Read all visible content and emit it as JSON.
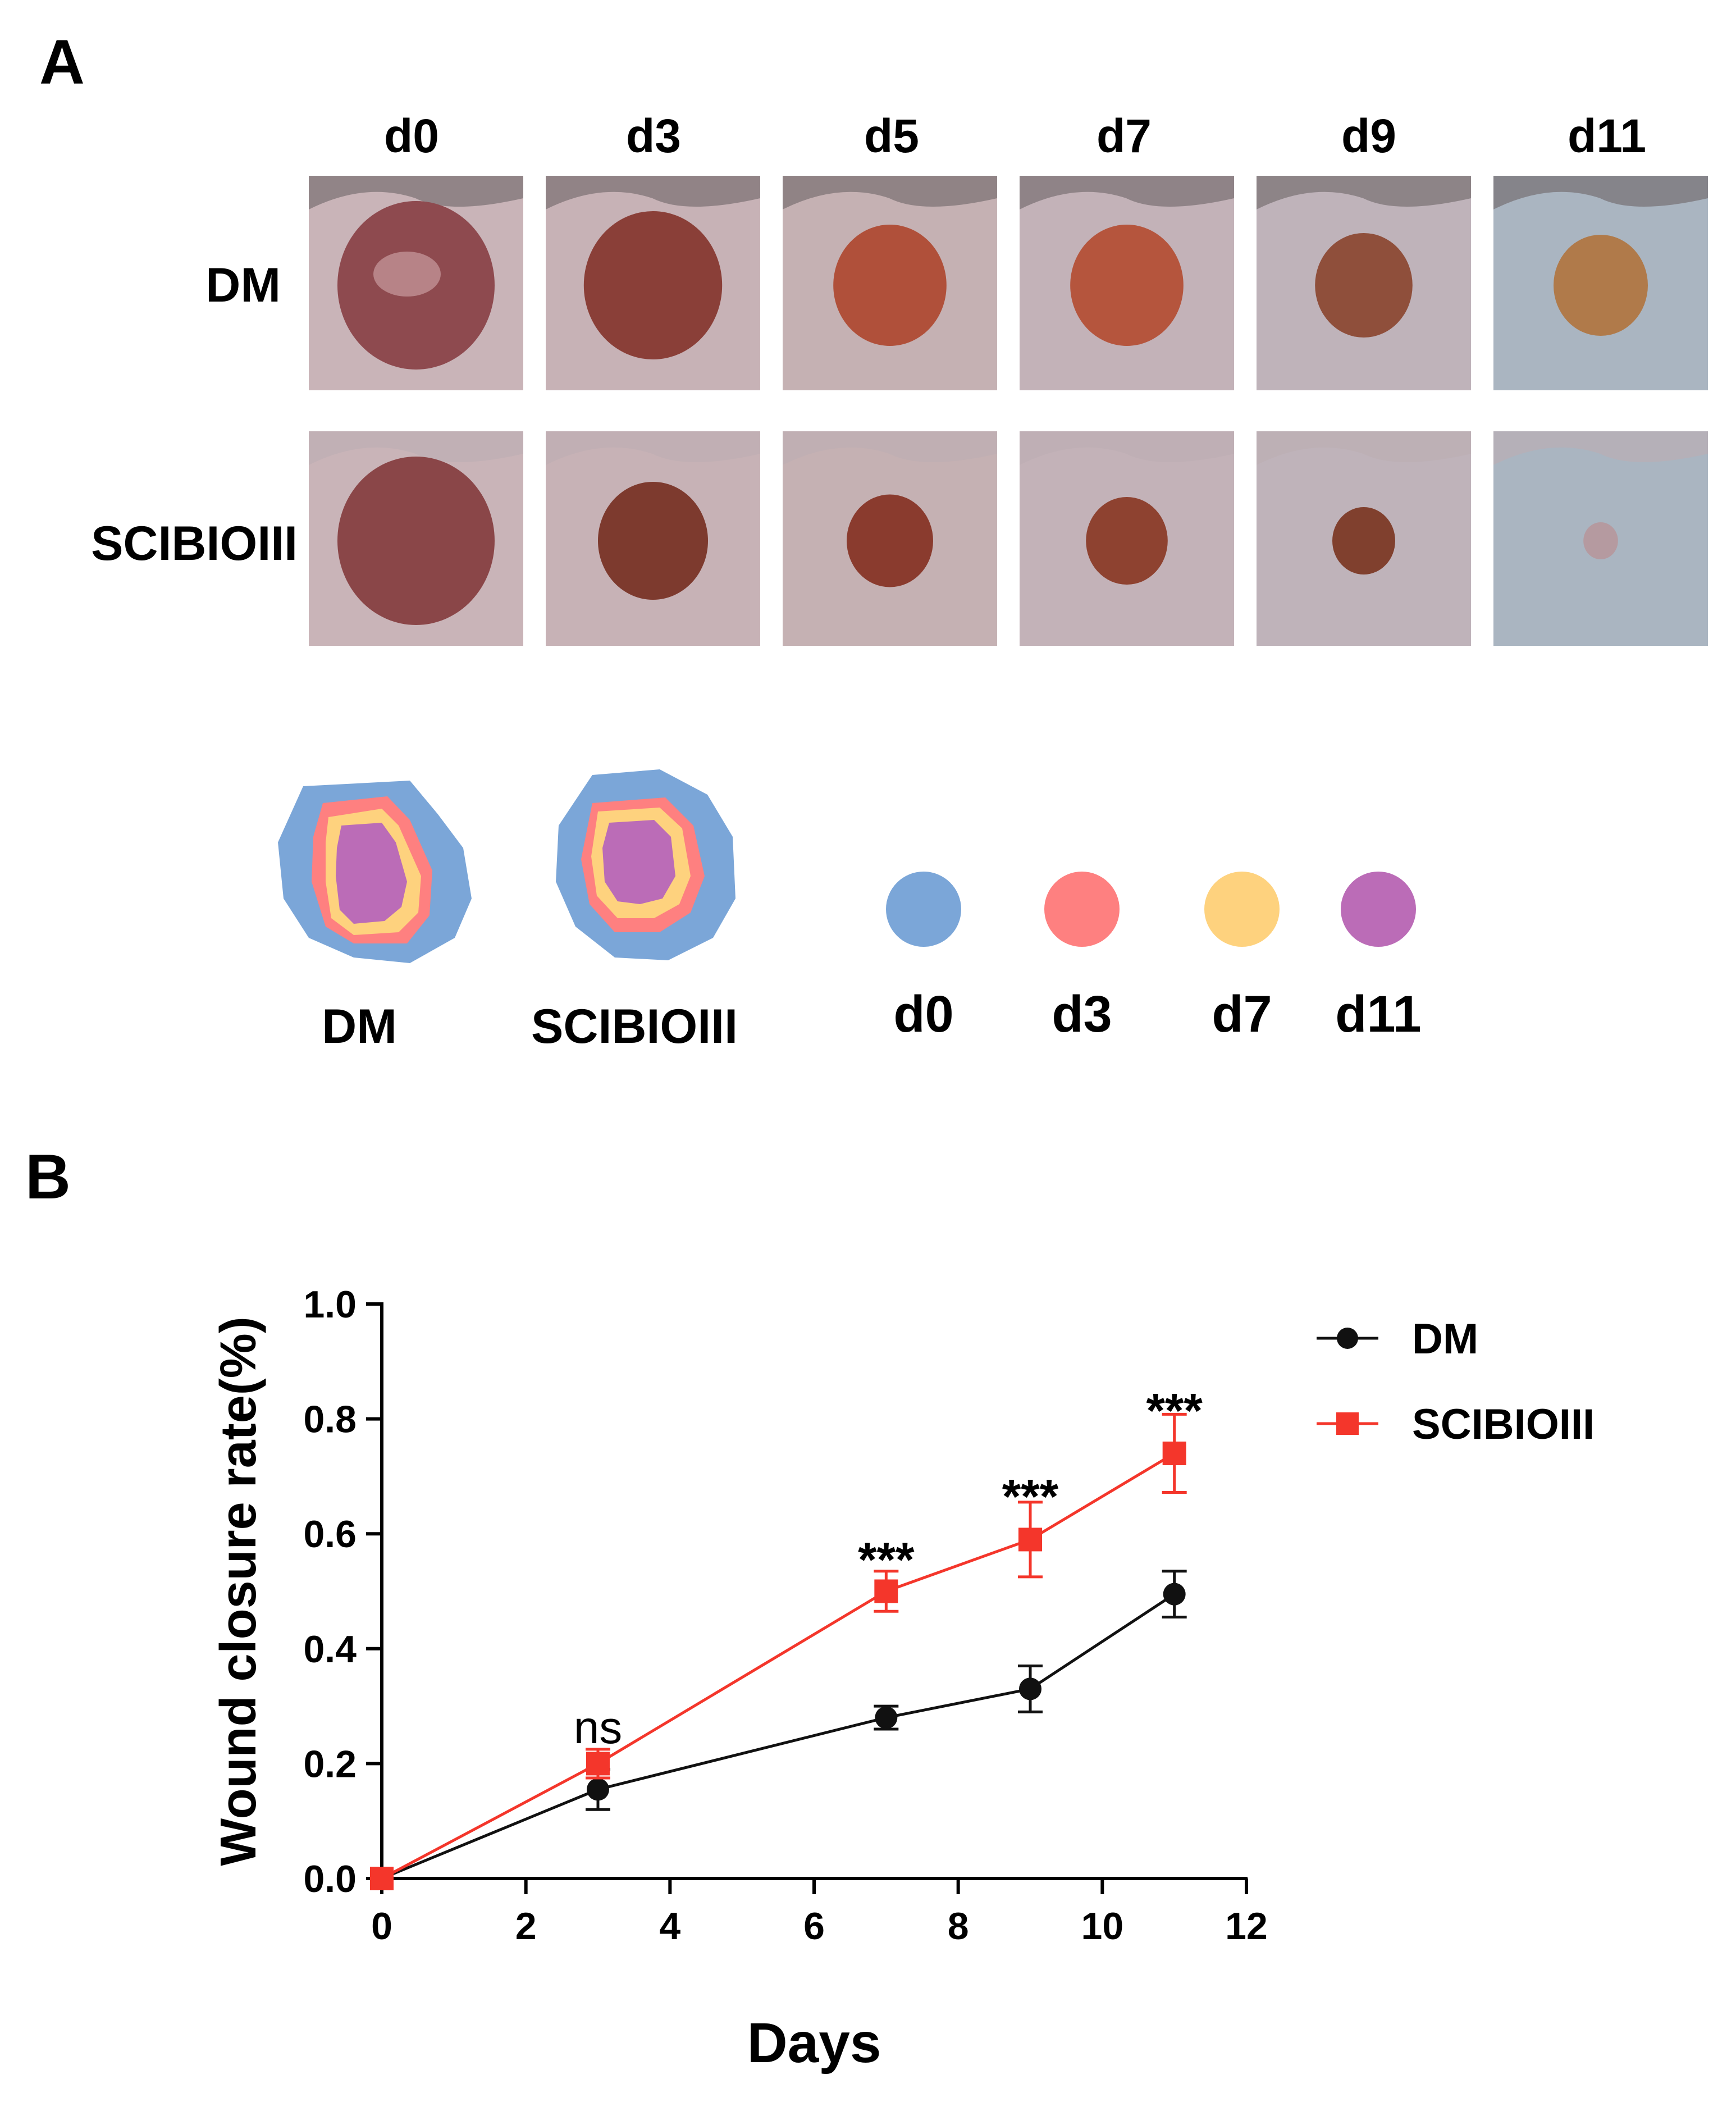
{
  "panel_a": {
    "label": "A",
    "days": [
      "d0",
      "d3",
      "d5",
      "d7",
      "d9",
      "d11"
    ],
    "rows": [
      "DM",
      "SCIBIOIII"
    ],
    "traces": [
      "DM",
      "SCIBIOIII"
    ],
    "trace_legend": [
      {
        "day": "d0",
        "color": "#7ba6d8"
      },
      {
        "day": "d3",
        "color": "#fe8080"
      },
      {
        "day": "d7",
        "color": "#fed27e"
      },
      {
        "day": "d11",
        "color": "#bb6cb7"
      }
    ]
  },
  "panel_b": {
    "label": "B"
  },
  "chart_data": {
    "type": "line",
    "xlabel": "Days",
    "ylabel": "Wound closure rate(%)",
    "xlim": [
      0,
      12
    ],
    "ylim": [
      0,
      1.0
    ],
    "xticks": [
      "0",
      "2",
      "4",
      "6",
      "8",
      "10",
      "12"
    ],
    "yticks": [
      "0.0",
      "0.2",
      "0.4",
      "0.6",
      "0.8",
      "1.0"
    ],
    "x": [
      0,
      3,
      7,
      9,
      11
    ],
    "series": [
      {
        "name": "DM",
        "marker": "circle",
        "color": "#111111",
        "values": [
          0,
          0.155,
          0.28,
          0.33,
          0.495
        ],
        "errors": [
          0,
          0.035,
          0.02,
          0.04,
          0.04
        ]
      },
      {
        "name": "SCIBIOIII",
        "marker": "square",
        "color": "#f4362b",
        "values": [
          0,
          0.2,
          0.5,
          0.59,
          0.74
        ],
        "errors": [
          0,
          0.025,
          0.035,
          0.065,
          0.068
        ]
      }
    ],
    "annotations": [
      {
        "x": 3,
        "y": 0.265,
        "text": "ns"
      },
      {
        "x": 7,
        "y": 0.555,
        "text": "***"
      },
      {
        "x": 9,
        "y": 0.665,
        "text": "***"
      },
      {
        "x": 11,
        "y": 0.815,
        "text": "***"
      }
    ],
    "legend_position": "top-right"
  }
}
